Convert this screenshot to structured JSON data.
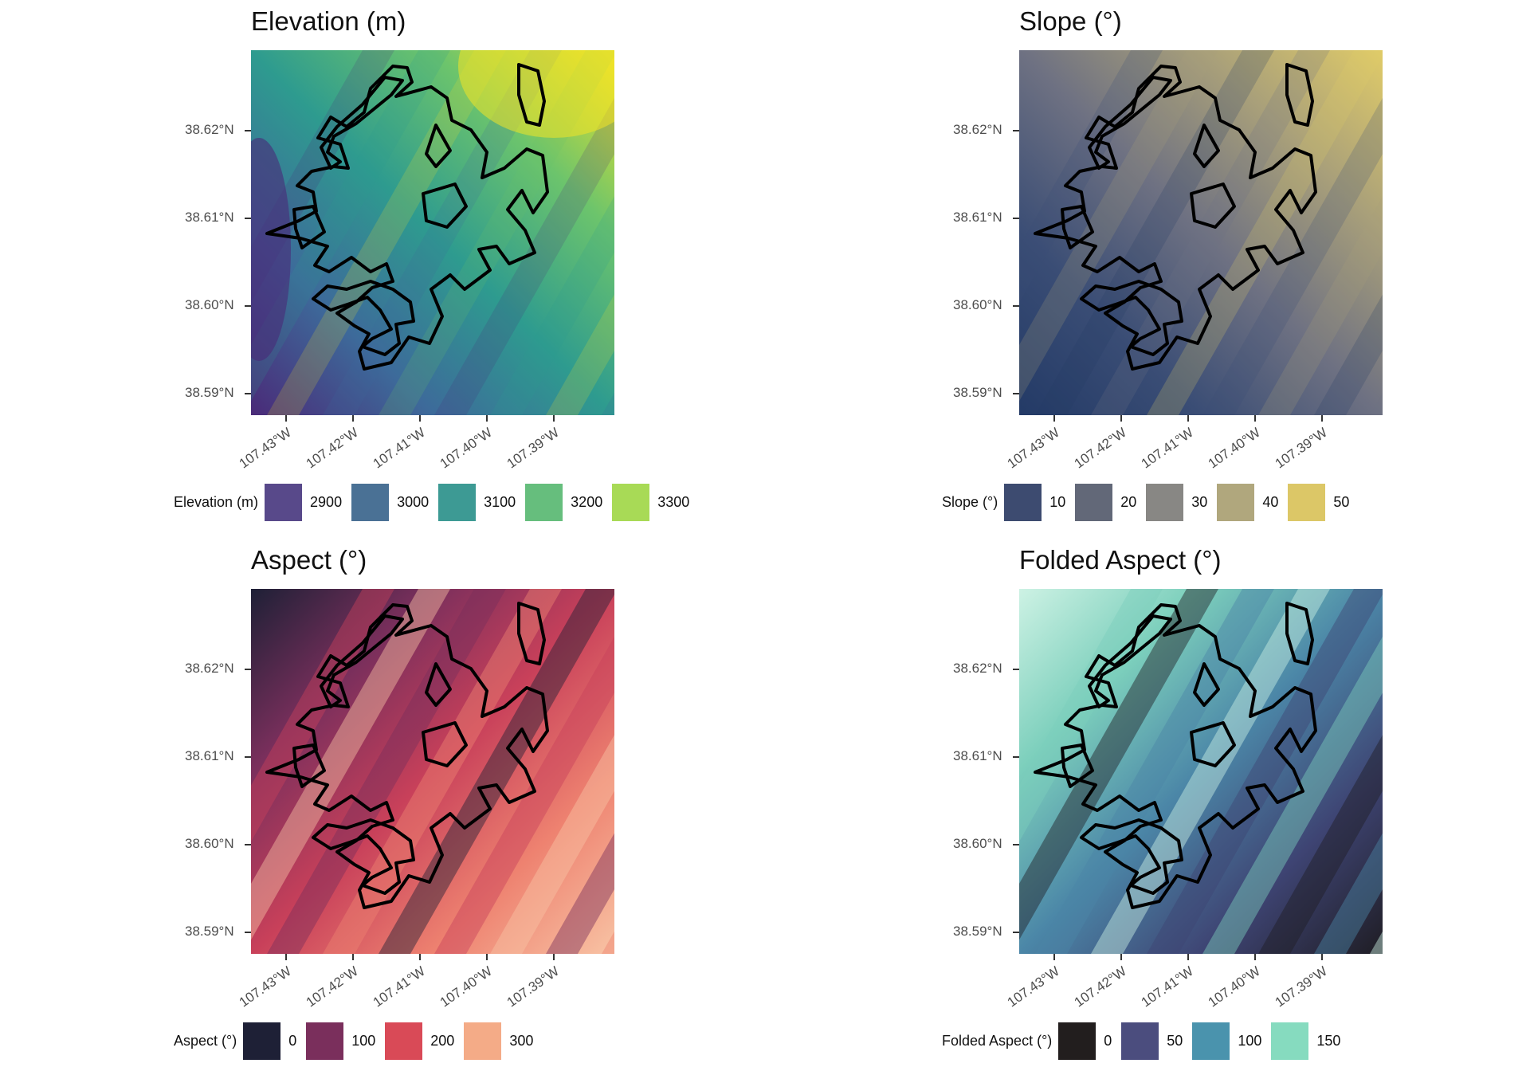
{
  "panels": [
    {
      "title": "Elevation (m)",
      "legend_title": "Elevation (m)",
      "legend": [
        {
          "label": "2900",
          "color": "#58498a"
        },
        {
          "label": "3000",
          "color": "#4a7195"
        },
        {
          "label": "3100",
          "color": "#3d9a94"
        },
        {
          "label": "3200",
          "color": "#66be7d"
        },
        {
          "label": "3300",
          "color": "#a8da56"
        }
      ],
      "gradient": [
        "#4a2a78",
        "#3d6a9a",
        "#2e9b8f",
        "#6cc46c",
        "#f2e326"
      ]
    },
    {
      "title": "Slope (°)",
      "legend_title": "Slope (°)",
      "legend": [
        {
          "label": "10",
          "color": "#3d4b70"
        },
        {
          "label": "20",
          "color": "#626878"
        },
        {
          "label": "30",
          "color": "#888784"
        },
        {
          "label": "40",
          "color": "#b0a77d"
        },
        {
          "label": "50",
          "color": "#dcc767"
        }
      ],
      "gradient": [
        "#233a66",
        "#3a4d75",
        "#6e7182",
        "#a89f7a",
        "#e0cb68"
      ]
    },
    {
      "title": "Aspect (°)",
      "legend_title": "Aspect (°)",
      "legend": [
        {
          "label": "0",
          "color": "#1e2036"
        },
        {
          "label": "100",
          "color": "#7a2f5c"
        },
        {
          "label": "200",
          "color": "#d94a57"
        },
        {
          "label": "300",
          "color": "#f4ab87"
        }
      ],
      "gradient": [
        "#1e2036",
        "#7a2f5c",
        "#c8405a",
        "#ee8270",
        "#f8c3a4"
      ]
    },
    {
      "title": "Folded Aspect (°)",
      "legend_title": "Folded Aspect (°)",
      "legend": [
        {
          "label": "0",
          "color": "#221e1e"
        },
        {
          "label": "50",
          "color": "#4b4d7e"
        },
        {
          "label": "100",
          "color": "#4a93ad"
        },
        {
          "label": "150",
          "color": "#86dbbf"
        }
      ],
      "gradient": [
        "#1f1d24",
        "#3e4473",
        "#4b86a7",
        "#7ccfbc",
        "#cdf2e4"
      ]
    }
  ],
  "yticks": [
    "38.62°N",
    "38.61°N",
    "38.60°N",
    "38.59°N"
  ],
  "xticks": [
    "107.43°W",
    "107.42°W",
    "107.41°W",
    "107.40°W",
    "107.39°W"
  ]
}
